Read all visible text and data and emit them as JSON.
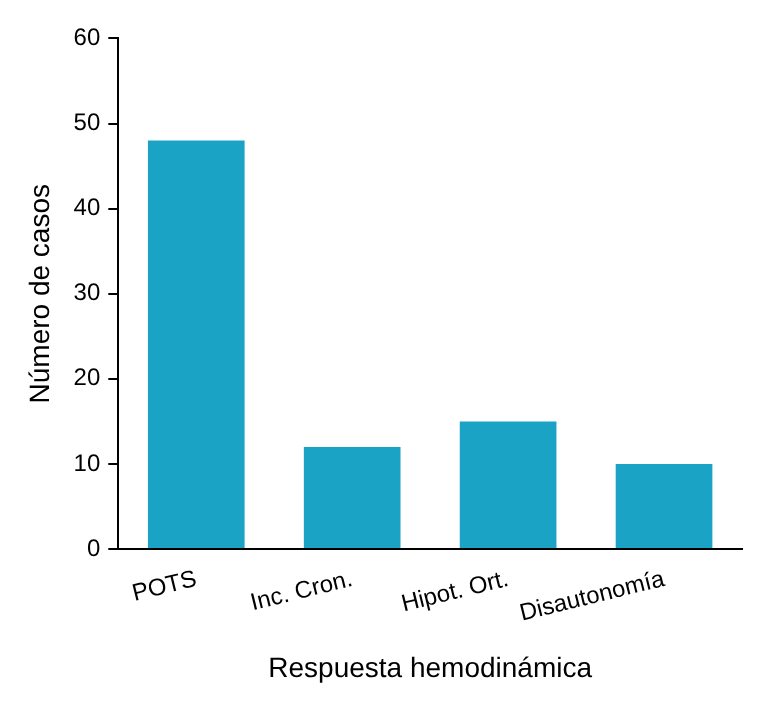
{
  "chart_data": {
    "type": "bar",
    "xlabel": "Respuesta hemodinámica",
    "ylabel": "Número de casos",
    "categories": [
      "POTS",
      "Inc. Cron.",
      "Hipot. Ort.",
      "Disautonomía"
    ],
    "values": [
      48,
      12,
      15,
      10
    ],
    "color": "#1aa3c4",
    "ylim": [
      0,
      60
    ],
    "yticks": [
      0,
      10,
      20,
      30,
      40,
      50,
      60
    ],
    "grid": false,
    "legend": false
  }
}
